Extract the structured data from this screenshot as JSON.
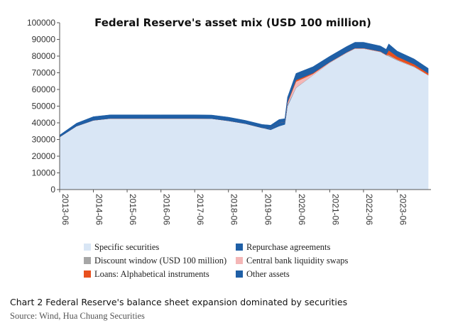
{
  "chart_data": {
    "type": "area",
    "stacked": true,
    "title": "Federal Reserve's asset mix (USD 100 million)",
    "ylim": [
      0,
      100000
    ],
    "yticks": [
      "0",
      "10000",
      "20000",
      "30000",
      "40000",
      "50000",
      "60000",
      "70000",
      "80000",
      "90000",
      "100000"
    ],
    "xticks": [
      "2013-06",
      "2014-06",
      "2015-06",
      "2016-06",
      "2017-06",
      "2018-06",
      "2019-06",
      "2020-06",
      "2021-06",
      "2022-06",
      "2023-06"
    ],
    "legend_position": "bottom",
    "legend": [
      {
        "name": "Specific securities",
        "color": "#d9e6f5"
      },
      {
        "name": "Repurchase agreements",
        "color": "#1f5fa6"
      },
      {
        "name": "Discount window (USD 100 million)",
        "color": "#a6a6a6"
      },
      {
        "name": "Central bank liquidity swaps",
        "color": "#f4b6b6"
      },
      {
        "name": "Loans: Alphabetical instruments",
        "color": "#e8501e"
      },
      {
        "name": "Other assets",
        "color": "#1f5fa6"
      }
    ],
    "x": [
      "2013-06",
      "2013-12",
      "2014-06",
      "2014-12",
      "2015-06",
      "2015-12",
      "2016-06",
      "2016-12",
      "2017-06",
      "2017-12",
      "2018-06",
      "2018-12",
      "2019-06",
      "2019-09",
      "2019-12",
      "2020-02",
      "2020-03",
      "2020-06",
      "2020-12",
      "2021-06",
      "2021-12",
      "2022-03",
      "2022-06",
      "2022-12",
      "2023-02",
      "2023-03",
      "2023-06",
      "2023-12",
      "2024-05"
    ],
    "series": [
      {
        "name": "Specific securities",
        "values": [
          31500,
          38000,
          41500,
          42600,
          42600,
          42600,
          42600,
          42600,
          42600,
          42500,
          41200,
          39500,
          37000,
          35800,
          38000,
          39000,
          50000,
          61000,
          68500,
          76000,
          82000,
          84500,
          84500,
          82500,
          80500,
          80000,
          77500,
          73500,
          68500
        ]
      },
      {
        "name": "Repurchase agreements",
        "values": [
          0,
          0,
          0,
          0,
          0,
          0,
          0,
          0,
          0,
          0,
          0,
          0,
          0,
          800,
          2000,
          1500,
          500,
          0,
          0,
          0,
          0,
          0,
          0,
          0,
          0,
          0,
          0,
          0,
          0
        ]
      },
      {
        "name": "Discount window (USD 100 million)",
        "values": [
          0,
          0,
          0,
          0,
          0,
          0,
          0,
          0,
          0,
          0,
          0,
          0,
          0,
          0,
          0,
          0,
          300,
          200,
          0,
          0,
          0,
          0,
          0,
          0,
          0,
          500,
          200,
          100,
          0
        ]
      },
      {
        "name": "Central bank liquidity swaps",
        "values": [
          0,
          0,
          0,
          0,
          0,
          0,
          0,
          0,
          0,
          0,
          0,
          0,
          0,
          0,
          0,
          0,
          1000,
          3500,
          800,
          300,
          200,
          200,
          200,
          200,
          200,
          200,
          200,
          200,
          200
        ]
      },
      {
        "name": "Loans: Alphabetical instruments",
        "values": [
          0,
          0,
          0,
          0,
          0,
          0,
          0,
          0,
          0,
          0,
          0,
          0,
          0,
          0,
          0,
          0,
          500,
          900,
          500,
          100,
          100,
          100,
          100,
          100,
          100,
          2800,
          1800,
          1300,
          1000
        ]
      },
      {
        "name": "Other assets",
        "values": [
          1200,
          1800,
          2200,
          2200,
          2200,
          2200,
          2200,
          2200,
          2200,
          2200,
          2200,
          2000,
          2000,
          2000,
          2000,
          2000,
          3000,
          4000,
          3800,
          3500,
          3500,
          3500,
          3500,
          3300,
          3300,
          3800,
          3300,
          3200,
          3000
        ]
      }
    ]
  },
  "caption": {
    "text": "Chart 2 Federal Reserve's balance sheet expansion dominated by securities",
    "source": "Source: Wind, Hua Chuang Securities"
  }
}
